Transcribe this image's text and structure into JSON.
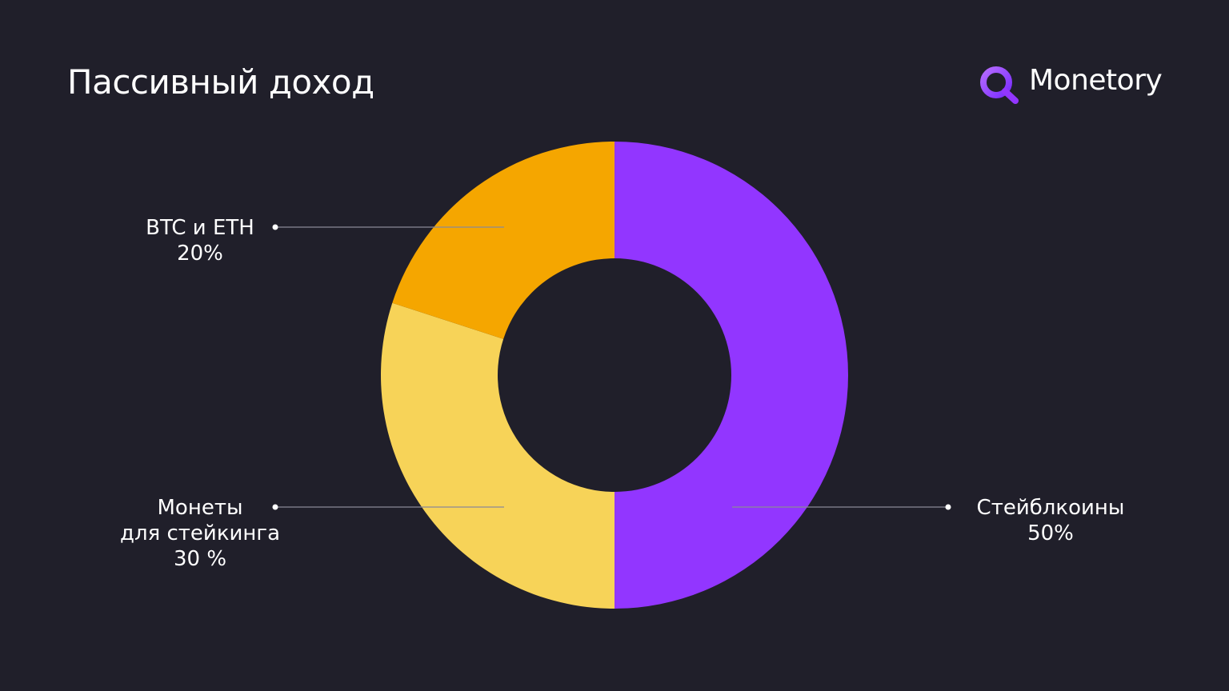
{
  "chart_data": {
    "type": "donut",
    "title": "Пассивный доход",
    "logo": "Monetory",
    "categories": [
      "Стейблкоины",
      "Монеты\nдля стейкинга",
      "BTC и ETH"
    ],
    "values": [
      50,
      30,
      20
    ],
    "value_labels": [
      "50%",
      "30 %",
      "20%"
    ],
    "colors": [
      "#9236ff",
      "#f7d358",
      "#f5a600"
    ]
  }
}
